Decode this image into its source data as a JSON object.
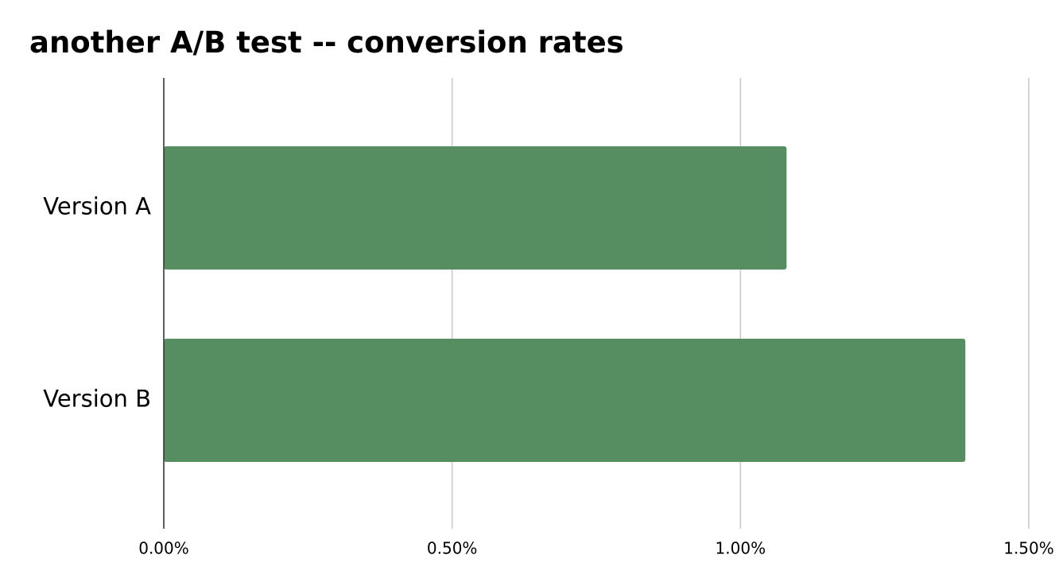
{
  "chart_data": {
    "type": "bar",
    "orientation": "horizontal",
    "title": "another A/B test -- conversion rates",
    "categories": [
      "Version A",
      "Version B"
    ],
    "values": [
      1.08,
      1.39
    ],
    "color": "#568e62",
    "xlim": [
      0,
      1.5
    ],
    "xticks": [
      {
        "value": 0,
        "label": "0.00%"
      },
      {
        "value": 0.5,
        "label": "0.50%"
      },
      {
        "value": 1,
        "label": "1.00%"
      },
      {
        "value": 1.5,
        "label": "1.50%"
      }
    ],
    "grid": true
  }
}
